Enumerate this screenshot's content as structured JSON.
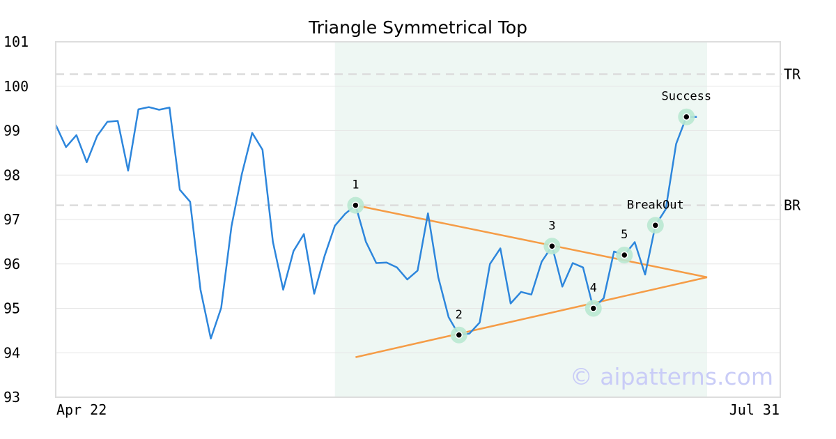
{
  "chart_data": {
    "type": "line",
    "title": "Triangle Symmetrical Top",
    "xlabel": "",
    "ylabel": "",
    "ylim": [
      93,
      101
    ],
    "yticks": [
      "93",
      "94",
      "95",
      "96",
      "97",
      "98",
      "99",
      "100",
      "101"
    ],
    "xtick_labels": {
      "start": "Apr 22",
      "end": "Jul 31"
    },
    "grid": true,
    "series": [
      {
        "color": "#2d86dc",
        "values": [
          99.13,
          98.63,
          98.9,
          98.29,
          98.88,
          99.2,
          99.22,
          98.1,
          99.48,
          99.53,
          99.47,
          99.52,
          97.67,
          97.4,
          95.42,
          94.32,
          95.01,
          96.85,
          98.02,
          98.95,
          98.57,
          96.5,
          95.42,
          96.29,
          96.67,
          95.33,
          96.18,
          96.86,
          97.13,
          97.32,
          96.5,
          96.02,
          96.03,
          95.92,
          95.65,
          95.85,
          97.14,
          95.7,
          94.8,
          94.4,
          94.43,
          94.68,
          96.0,
          96.35,
          95.11,
          95.37,
          95.31,
          96.05,
          96.4,
          95.49,
          96.02,
          95.92,
          95.0,
          95.23,
          96.28,
          96.2,
          96.49,
          95.76,
          96.87,
          97.23,
          98.7,
          99.31,
          99.31
        ]
      }
    ],
    "highlight_region": {
      "start_index": 27,
      "end_index": 63
    },
    "levels": [
      {
        "label": "TR",
        "value": 100.27
      },
      {
        "label": "BR",
        "value": 97.32
      }
    ],
    "trendlines": [
      {
        "color": "#f59c46",
        "from": {
          "index": 29,
          "value": 97.32
        },
        "to": {
          "index": 63,
          "value": 95.7
        }
      },
      {
        "color": "#f59c46",
        "from": {
          "index": 29,
          "value": 93.9
        },
        "to": {
          "index": 63,
          "value": 95.7
        }
      }
    ],
    "annotations": [
      {
        "label": "1",
        "index": 29,
        "value": 97.32,
        "label_pos": "above"
      },
      {
        "label": "2",
        "index": 39,
        "value": 94.4,
        "label_pos": "above"
      },
      {
        "label": "3",
        "index": 48,
        "value": 96.4,
        "label_pos": "above"
      },
      {
        "label": "4",
        "index": 52,
        "value": 95.0,
        "label_pos": "above"
      },
      {
        "label": "5",
        "index": 55,
        "value": 96.2,
        "label_pos": "above"
      },
      {
        "label": "BreakOut",
        "index": 58,
        "value": 96.87,
        "label_pos": "above"
      },
      {
        "label": "Success",
        "index": 61,
        "value": 99.31,
        "label_pos": "above"
      }
    ],
    "watermark": "© aipatterns.com"
  }
}
